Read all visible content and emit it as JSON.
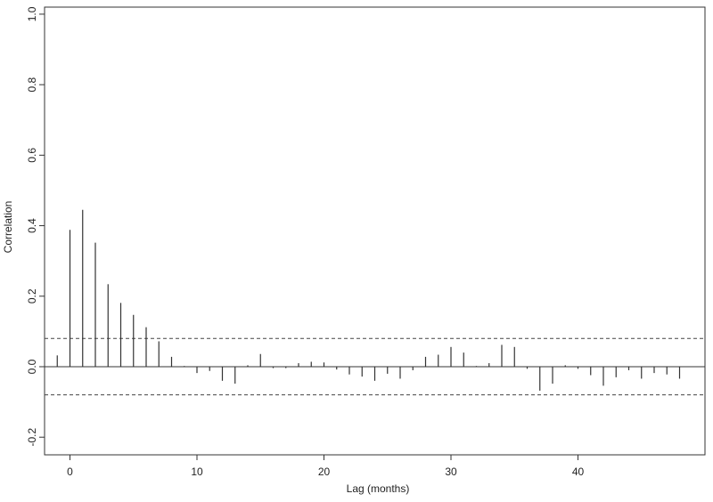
{
  "chart_data": {
    "type": "bar",
    "subtype": "stem",
    "title": "",
    "xlabel": "Lag (months)",
    "ylabel": "Correlation",
    "xlim": [
      -2,
      50
    ],
    "ylim": [
      -0.25,
      1.02
    ],
    "xticks": [
      0,
      10,
      20,
      30,
      40
    ],
    "yticks": [
      -0.2,
      0.0,
      0.2,
      0.4,
      0.6,
      0.8,
      1.0
    ],
    "grid": false,
    "legend": "none",
    "zero_line": true,
    "confidence_band": [
      -0.08,
      0.08
    ],
    "lags": [
      -1,
      0,
      1,
      2,
      3,
      4,
      5,
      6,
      7,
      8,
      9,
      10,
      11,
      12,
      13,
      14,
      15,
      16,
      17,
      18,
      19,
      20,
      21,
      22,
      23,
      24,
      25,
      26,
      27,
      28,
      29,
      30,
      31,
      32,
      33,
      34,
      35,
      36,
      37,
      38,
      39,
      40,
      41,
      42,
      43,
      44,
      45,
      46,
      47,
      48
    ],
    "values": [
      0.032,
      0.388,
      0.445,
      0.352,
      0.234,
      0.181,
      0.147,
      0.112,
      0.072,
      0.028,
      0.002,
      -0.018,
      -0.012,
      -0.04,
      -0.048,
      0.004,
      0.036,
      -0.004,
      -0.004,
      0.01,
      0.014,
      0.012,
      -0.008,
      -0.022,
      -0.028,
      -0.04,
      -0.02,
      -0.034,
      -0.01,
      0.028,
      0.034,
      0.056,
      0.04,
      0.002,
      0.01,
      0.062,
      0.056,
      -0.006,
      -0.068,
      -0.048,
      0.004,
      -0.006,
      -0.024,
      -0.054,
      -0.03,
      -0.01,
      -0.034,
      -0.018,
      -0.022,
      -0.034
    ],
    "colors": {
      "stem": "#333333",
      "frame": "#333333",
      "ci": "#444444"
    }
  }
}
